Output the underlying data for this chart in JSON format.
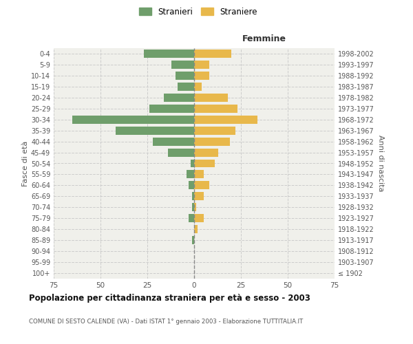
{
  "age_groups": [
    "100+",
    "95-99",
    "90-94",
    "85-89",
    "80-84",
    "75-79",
    "70-74",
    "65-69",
    "60-64",
    "55-59",
    "50-54",
    "45-49",
    "40-44",
    "35-39",
    "30-34",
    "25-29",
    "20-24",
    "15-19",
    "10-14",
    "5-9",
    "0-4"
  ],
  "birth_years": [
    "≤ 1902",
    "1903-1907",
    "1908-1912",
    "1913-1917",
    "1918-1922",
    "1923-1927",
    "1928-1932",
    "1933-1937",
    "1938-1942",
    "1943-1947",
    "1948-1952",
    "1953-1957",
    "1958-1962",
    "1963-1967",
    "1968-1972",
    "1973-1977",
    "1978-1982",
    "1983-1987",
    "1988-1992",
    "1993-1997",
    "1998-2002"
  ],
  "males": [
    0,
    0,
    0,
    1,
    0,
    3,
    1,
    1,
    3,
    4,
    2,
    14,
    22,
    42,
    65,
    24,
    16,
    9,
    10,
    12,
    27
  ],
  "females": [
    0,
    0,
    0,
    0,
    2,
    5,
    1,
    5,
    8,
    5,
    11,
    13,
    19,
    22,
    34,
    23,
    18,
    4,
    8,
    8,
    20
  ],
  "male_color": "#6f9e6b",
  "female_color": "#e8b84b",
  "grid_color": "#cccccc",
  "center_line_color": "#888888",
  "bg_color": "#f0f0eb",
  "title": "Popolazione per cittadinanza straniera per età e sesso - 2003",
  "subtitle": "COMUNE DI SESTO CALENDE (VA) - Dati ISTAT 1° gennaio 2003 - Elaborazione TUTTITALIA.IT",
  "right_label": "Femmine",
  "ylabel": "Fasce di età",
  "ylabel2": "Anni di nascita",
  "legend_male": "Stranieri",
  "legend_female": "Straniere",
  "xlim": 75
}
